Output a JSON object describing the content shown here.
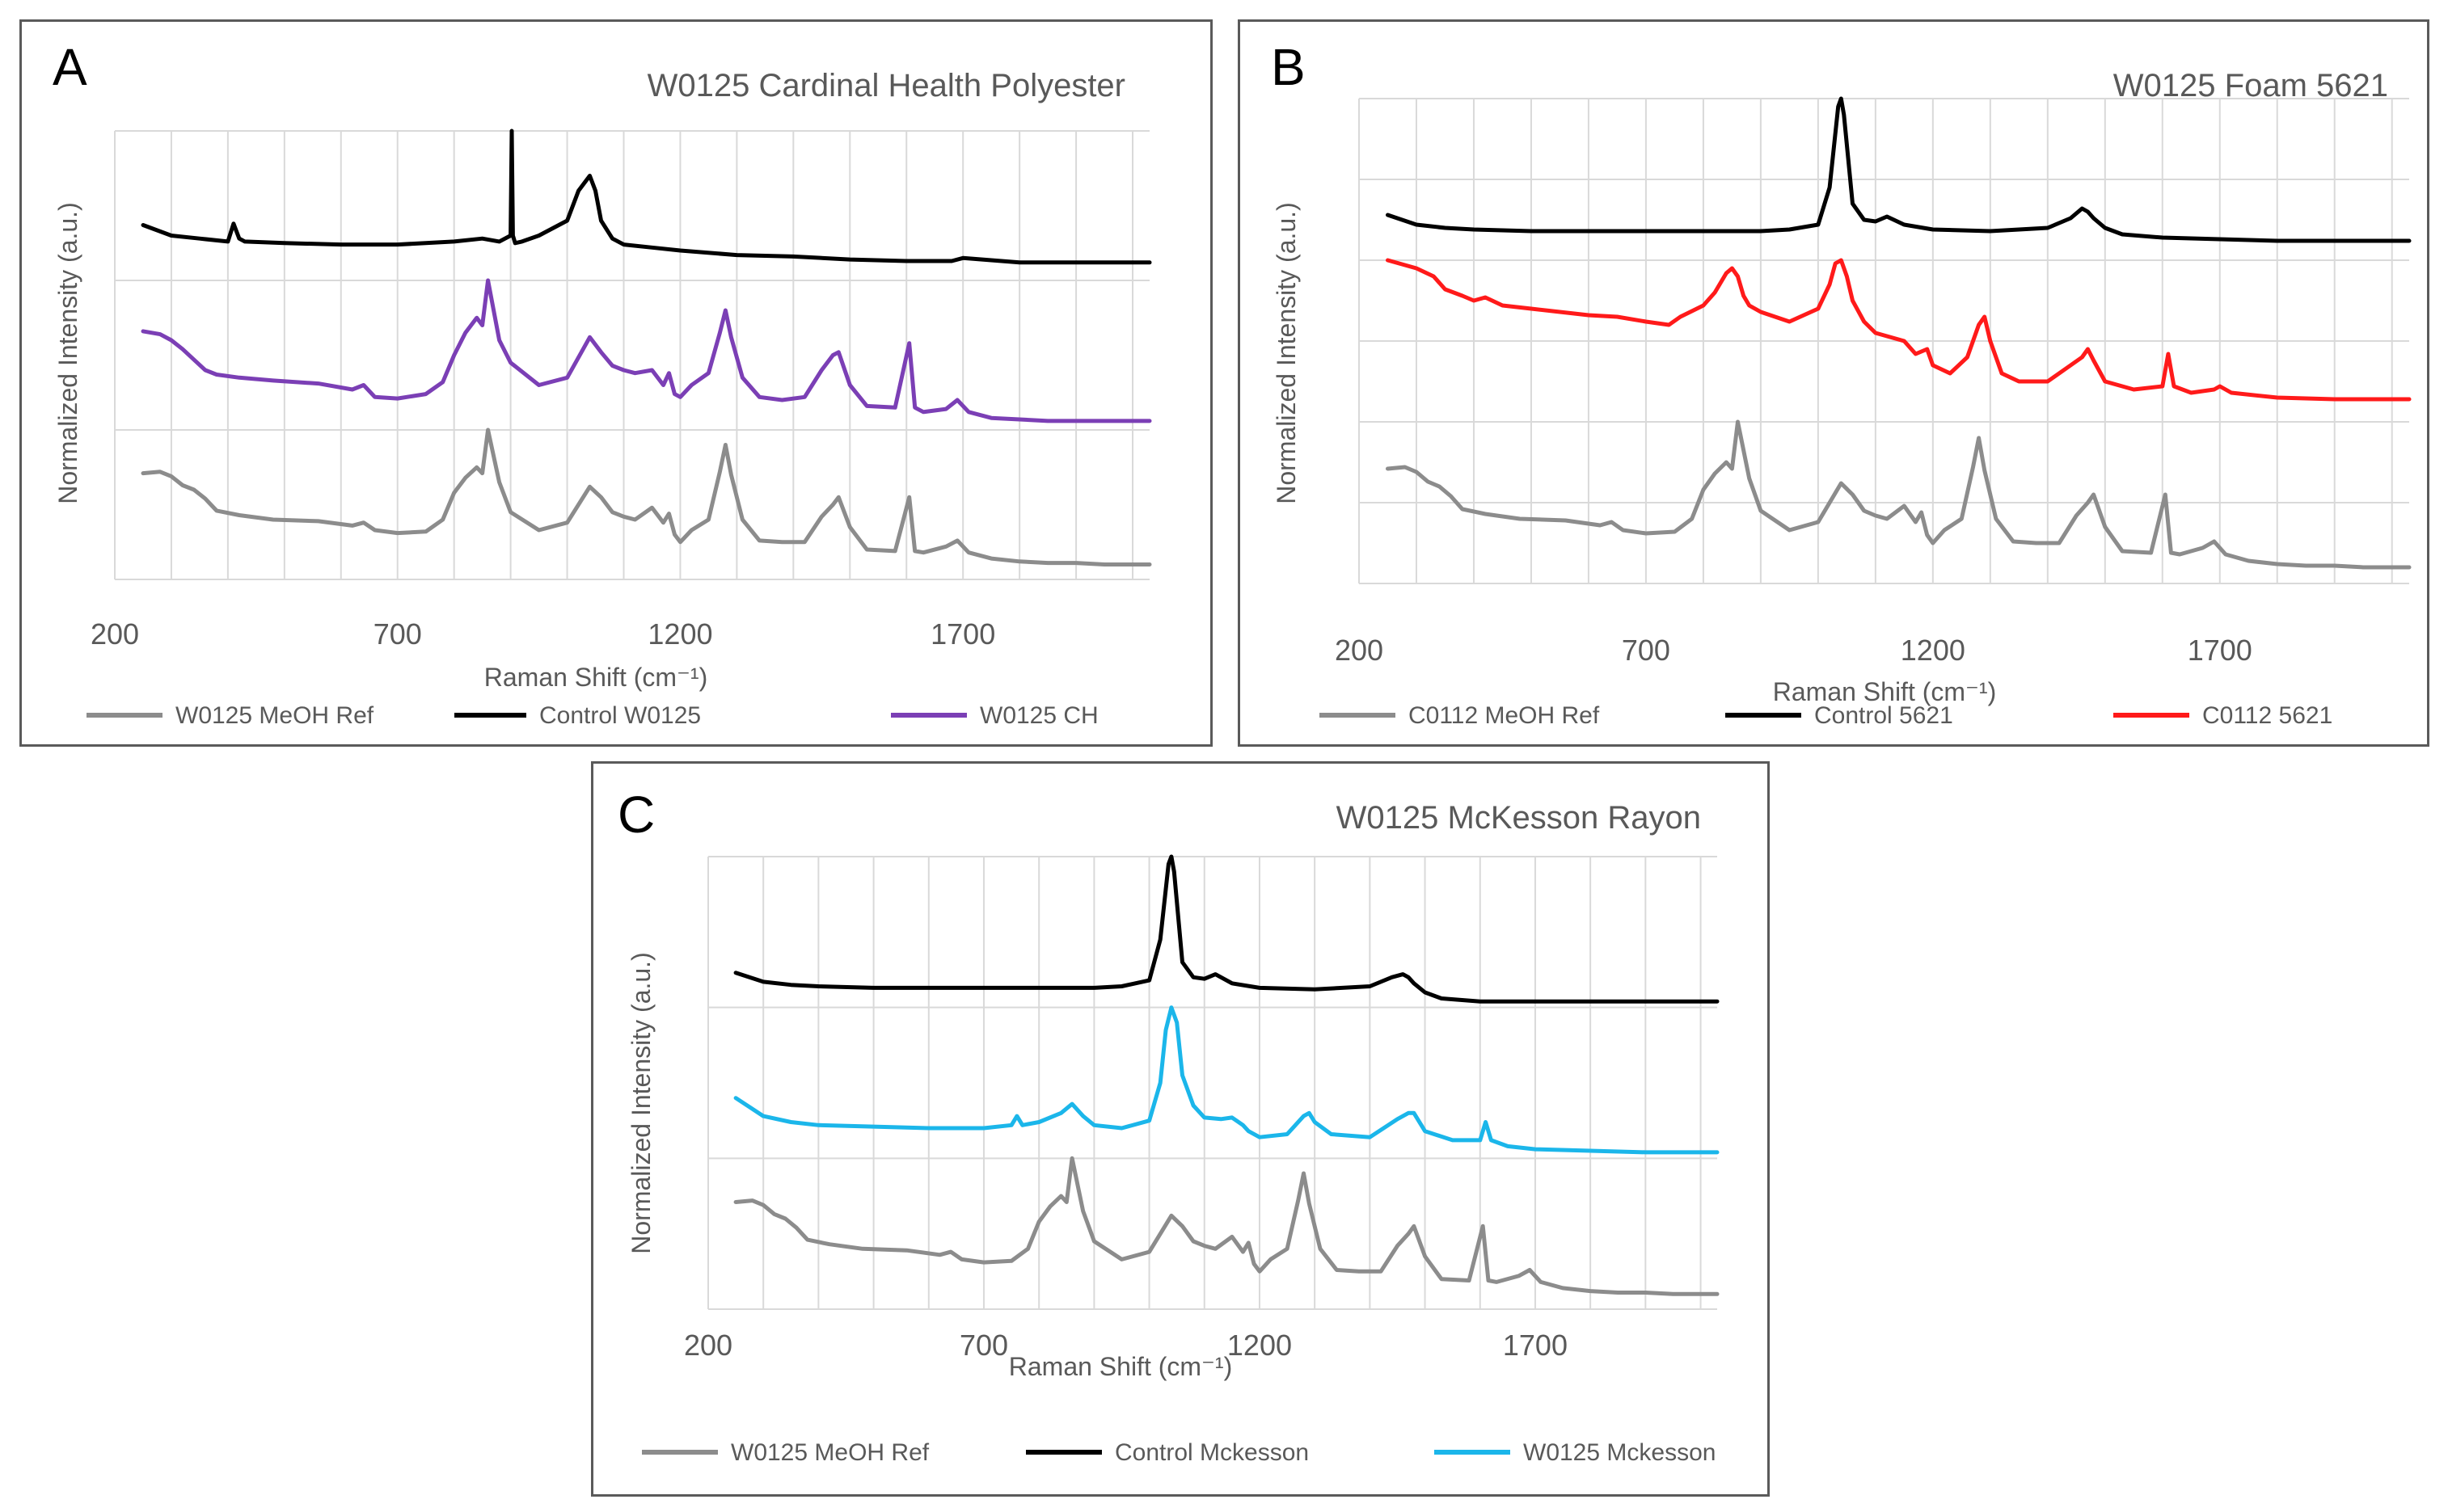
{
  "figure": {
    "background": "#ffffff",
    "colors": {
      "gray": "#8c8c8c",
      "black": "#000000",
      "purple": "#7b3fb5",
      "red": "#ff1a1a",
      "blue": "#1bb6ea",
      "grid": "#d9d9d9",
      "text": "#595959"
    }
  },
  "chart_data": [
    {
      "panel_letter": "A",
      "type": "line",
      "title": "W0125 Cardinal Health  Polyester",
      "xlabel": "Raman Shift (cm⁻¹)",
      "ylabel": "Normalized Intensity (a.u.)",
      "xlim": [
        200,
        2030
      ],
      "xticks": [
        200,
        700,
        1200,
        1700
      ],
      "ylim": [
        0,
        3
      ],
      "y_gridlines": [
        1,
        2
      ],
      "grid": true,
      "legend": "bottom",
      "series": [
        {
          "name": "W0125 MeOH Ref",
          "color": "#8c8c8c",
          "offset": 0,
          "x": [
            250,
            280,
            300,
            320,
            340,
            360,
            380,
            420,
            480,
            560,
            620,
            640,
            660,
            700,
            750,
            780,
            800,
            820,
            840,
            850,
            860,
            880,
            900,
            950,
            1000,
            1040,
            1060,
            1080,
            1100,
            1120,
            1150,
            1170,
            1180,
            1190,
            1200,
            1220,
            1250,
            1270,
            1280,
            1290,
            1310,
            1340,
            1380,
            1420,
            1450,
            1470,
            1480,
            1500,
            1530,
            1580,
            1605,
            1615,
            1630,
            1670,
            1690,
            1710,
            1750,
            1800,
            1850,
            1900,
            1950,
            2030
          ],
          "y": [
            0.71,
            0.72,
            0.69,
            0.63,
            0.6,
            0.54,
            0.46,
            0.43,
            0.4,
            0.39,
            0.36,
            0.38,
            0.33,
            0.31,
            0.32,
            0.4,
            0.58,
            0.68,
            0.75,
            0.71,
            1.0,
            0.65,
            0.45,
            0.33,
            0.38,
            0.62,
            0.55,
            0.45,
            0.42,
            0.4,
            0.48,
            0.38,
            0.44,
            0.3,
            0.25,
            0.33,
            0.4,
            0.72,
            0.9,
            0.7,
            0.4,
            0.26,
            0.25,
            0.25,
            0.42,
            0.5,
            0.55,
            0.35,
            0.2,
            0.19,
            0.55,
            0.19,
            0.18,
            0.22,
            0.26,
            0.18,
            0.14,
            0.12,
            0.11,
            0.11,
            0.1,
            0.1
          ]
        },
        {
          "name": "Control W0125",
          "color": "#000000",
          "offset": 2,
          "x": [
            250,
            300,
            350,
            400,
            410,
            420,
            430,
            500,
            600,
            700,
            800,
            850,
            880,
            900,
            902,
            904,
            908,
            920,
            950,
            1000,
            1020,
            1040,
            1050,
            1060,
            1080,
            1100,
            1150,
            1200,
            1300,
            1400,
            1500,
            1600,
            1680,
            1700,
            1800,
            1900,
            2030
          ],
          "y": [
            0.37,
            0.3,
            0.28,
            0.26,
            0.38,
            0.28,
            0.26,
            0.25,
            0.24,
            0.24,
            0.26,
            0.28,
            0.26,
            0.3,
            1.0,
            0.3,
            0.25,
            0.26,
            0.3,
            0.4,
            0.6,
            0.7,
            0.6,
            0.4,
            0.28,
            0.24,
            0.22,
            0.2,
            0.17,
            0.16,
            0.14,
            0.13,
            0.13,
            0.15,
            0.12,
            0.12,
            0.12
          ]
        },
        {
          "name": "W0125 CH",
          "color": "#7b3fb5",
          "offset": 1,
          "x": [
            250,
            280,
            300,
            320,
            340,
            360,
            380,
            420,
            480,
            560,
            620,
            640,
            660,
            700,
            750,
            780,
            800,
            820,
            840,
            850,
            860,
            880,
            900,
            950,
            1000,
            1040,
            1060,
            1080,
            1100,
            1120,
            1150,
            1170,
            1180,
            1190,
            1200,
            1220,
            1250,
            1270,
            1280,
            1290,
            1310,
            1340,
            1380,
            1420,
            1450,
            1470,
            1480,
            1500,
            1530,
            1580,
            1605,
            1615,
            1630,
            1670,
            1690,
            1710,
            1750,
            1800,
            1850,
            1900,
            1950,
            2030
          ],
          "y": [
            0.66,
            0.64,
            0.6,
            0.54,
            0.47,
            0.4,
            0.37,
            0.35,
            0.33,
            0.31,
            0.27,
            0.3,
            0.22,
            0.21,
            0.24,
            0.32,
            0.5,
            0.65,
            0.75,
            0.7,
            1.0,
            0.6,
            0.45,
            0.3,
            0.35,
            0.62,
            0.52,
            0.43,
            0.4,
            0.38,
            0.4,
            0.3,
            0.38,
            0.24,
            0.22,
            0.3,
            0.38,
            0.65,
            0.8,
            0.62,
            0.35,
            0.22,
            0.2,
            0.22,
            0.4,
            0.5,
            0.52,
            0.3,
            0.16,
            0.15,
            0.58,
            0.15,
            0.12,
            0.14,
            0.2,
            0.12,
            0.08,
            0.07,
            0.06,
            0.06,
            0.06,
            0.06
          ]
        }
      ]
    },
    {
      "panel_letter": "B",
      "type": "line",
      "title": "W0125 Foam 5621",
      "xlabel": "Raman Shift (cm⁻¹)",
      "ylabel": "Normalized Intensity (a.u.)",
      "xlim": [
        200,
        2030
      ],
      "xticks": [
        200,
        700,
        1200,
        1700
      ],
      "ylim": [
        0,
        3
      ],
      "y_gridlines": [
        0.5,
        1,
        1.5,
        2,
        2.5
      ],
      "grid": true,
      "legend": "bottom",
      "series": [
        {
          "name": "C0112 MeOH Ref",
          "color": "#8c8c8c",
          "offset": 0,
          "x": [
            250,
            280,
            300,
            320,
            340,
            360,
            380,
            420,
            480,
            560,
            620,
            640,
            660,
            700,
            750,
            780,
            800,
            820,
            840,
            850,
            860,
            880,
            900,
            950,
            1000,
            1040,
            1060,
            1080,
            1100,
            1120,
            1150,
            1170,
            1180,
            1190,
            1200,
            1220,
            1250,
            1270,
            1280,
            1290,
            1310,
            1340,
            1380,
            1420,
            1450,
            1470,
            1480,
            1500,
            1530,
            1580,
            1605,
            1615,
            1630,
            1670,
            1690,
            1710,
            1750,
            1800,
            1850,
            1900,
            1950,
            2030
          ],
          "y": [
            0.71,
            0.72,
            0.69,
            0.63,
            0.6,
            0.54,
            0.46,
            0.43,
            0.4,
            0.39,
            0.36,
            0.38,
            0.33,
            0.31,
            0.32,
            0.4,
            0.58,
            0.68,
            0.75,
            0.71,
            1.0,
            0.65,
            0.45,
            0.33,
            0.38,
            0.62,
            0.55,
            0.45,
            0.42,
            0.4,
            0.48,
            0.38,
            0.44,
            0.3,
            0.25,
            0.33,
            0.4,
            0.72,
            0.9,
            0.7,
            0.4,
            0.26,
            0.25,
            0.25,
            0.42,
            0.5,
            0.55,
            0.35,
            0.2,
            0.19,
            0.55,
            0.19,
            0.18,
            0.22,
            0.26,
            0.18,
            0.14,
            0.12,
            0.11,
            0.11,
            0.1,
            0.1
          ]
        },
        {
          "name": "Control 5621",
          "color": "#000000",
          "offset": 2,
          "x": [
            250,
            300,
            350,
            400,
            500,
            600,
            700,
            800,
            900,
            950,
            1000,
            1020,
            1035,
            1040,
            1045,
            1060,
            1080,
            1100,
            1120,
            1150,
            1200,
            1300,
            1400,
            1440,
            1460,
            1470,
            1480,
            1500,
            1530,
            1600,
            1700,
            1800,
            1900,
            2030
          ],
          "y": [
            0.28,
            0.22,
            0.2,
            0.19,
            0.18,
            0.18,
            0.18,
            0.18,
            0.18,
            0.19,
            0.22,
            0.45,
            0.95,
            1.0,
            0.9,
            0.35,
            0.25,
            0.24,
            0.27,
            0.22,
            0.19,
            0.18,
            0.2,
            0.26,
            0.32,
            0.3,
            0.26,
            0.2,
            0.16,
            0.14,
            0.13,
            0.12,
            0.12,
            0.12
          ]
        },
        {
          "name": "C0112 5621",
          "color": "#ff1a1a",
          "offset": 1,
          "x": [
            250,
            300,
            330,
            350,
            380,
            400,
            420,
            450,
            500,
            600,
            650,
            700,
            740,
            760,
            800,
            820,
            840,
            850,
            860,
            870,
            880,
            900,
            950,
            1000,
            1020,
            1030,
            1040,
            1050,
            1060,
            1080,
            1100,
            1150,
            1170,
            1190,
            1200,
            1230,
            1260,
            1280,
            1290,
            1300,
            1320,
            1350,
            1400,
            1440,
            1460,
            1470,
            1480,
            1500,
            1550,
            1600,
            1610,
            1620,
            1650,
            1690,
            1700,
            1720,
            1800,
            1900,
            2030
          ],
          "y": [
            1.0,
            0.95,
            0.9,
            0.82,
            0.78,
            0.75,
            0.77,
            0.72,
            0.7,
            0.66,
            0.65,
            0.62,
            0.6,
            0.65,
            0.72,
            0.8,
            0.92,
            0.95,
            0.9,
            0.78,
            0.72,
            0.68,
            0.62,
            0.7,
            0.85,
            0.98,
            1.0,
            0.9,
            0.75,
            0.62,
            0.55,
            0.5,
            0.42,
            0.45,
            0.35,
            0.3,
            0.4,
            0.6,
            0.65,
            0.5,
            0.3,
            0.25,
            0.25,
            0.35,
            0.4,
            0.45,
            0.38,
            0.25,
            0.2,
            0.22,
            0.42,
            0.22,
            0.18,
            0.2,
            0.22,
            0.18,
            0.15,
            0.14,
            0.14
          ]
        }
      ]
    },
    {
      "panel_letter": "C",
      "type": "line",
      "title": "W0125 McKesson Rayon",
      "xlabel": "Raman Shift (cm⁻¹)",
      "ylabel": "Normalized Intensity (a.u.)",
      "xlim": [
        200,
        2030
      ],
      "xticks": [
        200,
        700,
        1200,
        1700
      ],
      "ylim": [
        0,
        3
      ],
      "y_gridlines": [
        1,
        2
      ],
      "grid": true,
      "legend": "bottom",
      "series": [
        {
          "name": "W0125 MeOH Ref",
          "color": "#8c8c8c",
          "offset": 0,
          "x": [
            250,
            280,
            300,
            320,
            340,
            360,
            380,
            420,
            480,
            560,
            620,
            640,
            660,
            700,
            750,
            780,
            800,
            820,
            840,
            850,
            860,
            880,
            900,
            950,
            1000,
            1040,
            1060,
            1080,
            1100,
            1120,
            1150,
            1170,
            1180,
            1190,
            1200,
            1220,
            1250,
            1270,
            1280,
            1290,
            1310,
            1340,
            1380,
            1420,
            1450,
            1470,
            1480,
            1500,
            1530,
            1580,
            1605,
            1615,
            1630,
            1670,
            1690,
            1710,
            1750,
            1800,
            1850,
            1900,
            1950,
            2030
          ],
          "y": [
            0.71,
            0.72,
            0.69,
            0.63,
            0.6,
            0.54,
            0.46,
            0.43,
            0.4,
            0.39,
            0.36,
            0.38,
            0.33,
            0.31,
            0.32,
            0.4,
            0.58,
            0.68,
            0.75,
            0.71,
            1.0,
            0.65,
            0.45,
            0.33,
            0.38,
            0.62,
            0.55,
            0.45,
            0.42,
            0.4,
            0.48,
            0.38,
            0.44,
            0.3,
            0.25,
            0.33,
            0.4,
            0.72,
            0.9,
            0.7,
            0.4,
            0.26,
            0.25,
            0.25,
            0.42,
            0.5,
            0.55,
            0.35,
            0.2,
            0.19,
            0.55,
            0.19,
            0.18,
            0.22,
            0.26,
            0.18,
            0.14,
            0.12,
            0.11,
            0.11,
            0.1,
            0.1
          ]
        },
        {
          "name": "Control Mckesson",
          "color": "#000000",
          "offset": 2,
          "x": [
            250,
            300,
            350,
            400,
            500,
            600,
            700,
            800,
            900,
            950,
            1000,
            1020,
            1035,
            1040,
            1045,
            1060,
            1080,
            1100,
            1120,
            1150,
            1200,
            1300,
            1400,
            1440,
            1460,
            1470,
            1480,
            1500,
            1530,
            1600,
            1700,
            1800,
            1900,
            2030
          ],
          "y": [
            0.23,
            0.17,
            0.15,
            0.14,
            0.13,
            0.13,
            0.13,
            0.13,
            0.13,
            0.14,
            0.18,
            0.45,
            0.95,
            1.0,
            0.9,
            0.3,
            0.2,
            0.19,
            0.22,
            0.16,
            0.13,
            0.12,
            0.14,
            0.2,
            0.22,
            0.2,
            0.16,
            0.1,
            0.06,
            0.04,
            0.04,
            0.04,
            0.04,
            0.04
          ]
        },
        {
          "name": "W0125 Mckesson",
          "color": "#1bb6ea",
          "offset": 1,
          "x": [
            250,
            300,
            350,
            400,
            500,
            600,
            700,
            750,
            760,
            770,
            800,
            840,
            860,
            880,
            900,
            950,
            1000,
            1020,
            1030,
            1040,
            1050,
            1060,
            1080,
            1100,
            1130,
            1150,
            1170,
            1180,
            1200,
            1250,
            1280,
            1290,
            1300,
            1330,
            1400,
            1450,
            1470,
            1480,
            1500,
            1550,
            1600,
            1610,
            1620,
            1650,
            1700,
            1800,
            1900,
            2030
          ],
          "y": [
            0.4,
            0.28,
            0.24,
            0.22,
            0.21,
            0.2,
            0.2,
            0.22,
            0.28,
            0.22,
            0.24,
            0.3,
            0.36,
            0.28,
            0.22,
            0.2,
            0.25,
            0.5,
            0.85,
            1.0,
            0.9,
            0.55,
            0.35,
            0.27,
            0.26,
            0.27,
            0.22,
            0.18,
            0.14,
            0.16,
            0.28,
            0.3,
            0.24,
            0.16,
            0.14,
            0.26,
            0.3,
            0.3,
            0.18,
            0.12,
            0.12,
            0.24,
            0.12,
            0.08,
            0.06,
            0.05,
            0.04,
            0.04
          ]
        }
      ]
    }
  ]
}
